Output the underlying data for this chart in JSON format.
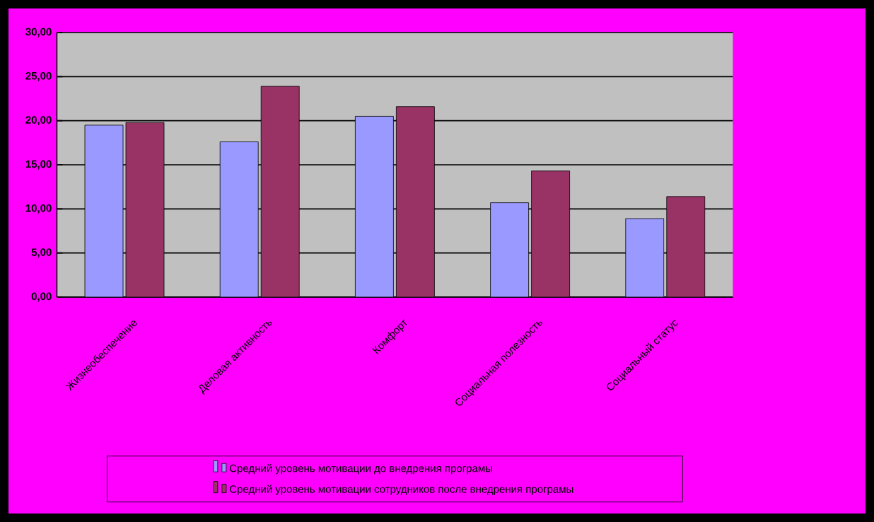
{
  "chart_data": {
    "type": "bar",
    "categories": [
      "Жизнеобеспечение",
      "Деловая активность",
      "Комфорт",
      "Социальная полезность",
      "Социальный статус"
    ],
    "series": [
      {
        "name": "Средний уровень мотивации до внедрения програмы",
        "color": "#9999ff",
        "values": [
          19.5,
          17.6,
          20.5,
          10.7,
          8.9
        ]
      },
      {
        "name": "Средний уровень мотивации сотрудников после внедрения програмы",
        "color": "#993366",
        "values": [
          19.8,
          23.9,
          21.6,
          14.3,
          11.4
        ]
      }
    ],
    "ylim": [
      0,
      30
    ],
    "yticks": [
      {
        "value": 0,
        "label": "0,00"
      },
      {
        "value": 5,
        "label": "5,00"
      },
      {
        "value": 10,
        "label": "10,00"
      },
      {
        "value": 15,
        "label": "15,00"
      },
      {
        "value": 20,
        "label": "20,00"
      },
      {
        "value": 25,
        "label": "25,00"
      },
      {
        "value": 30,
        "label": "30,00"
      }
    ],
    "grid": "y",
    "legend": "bottom"
  }
}
